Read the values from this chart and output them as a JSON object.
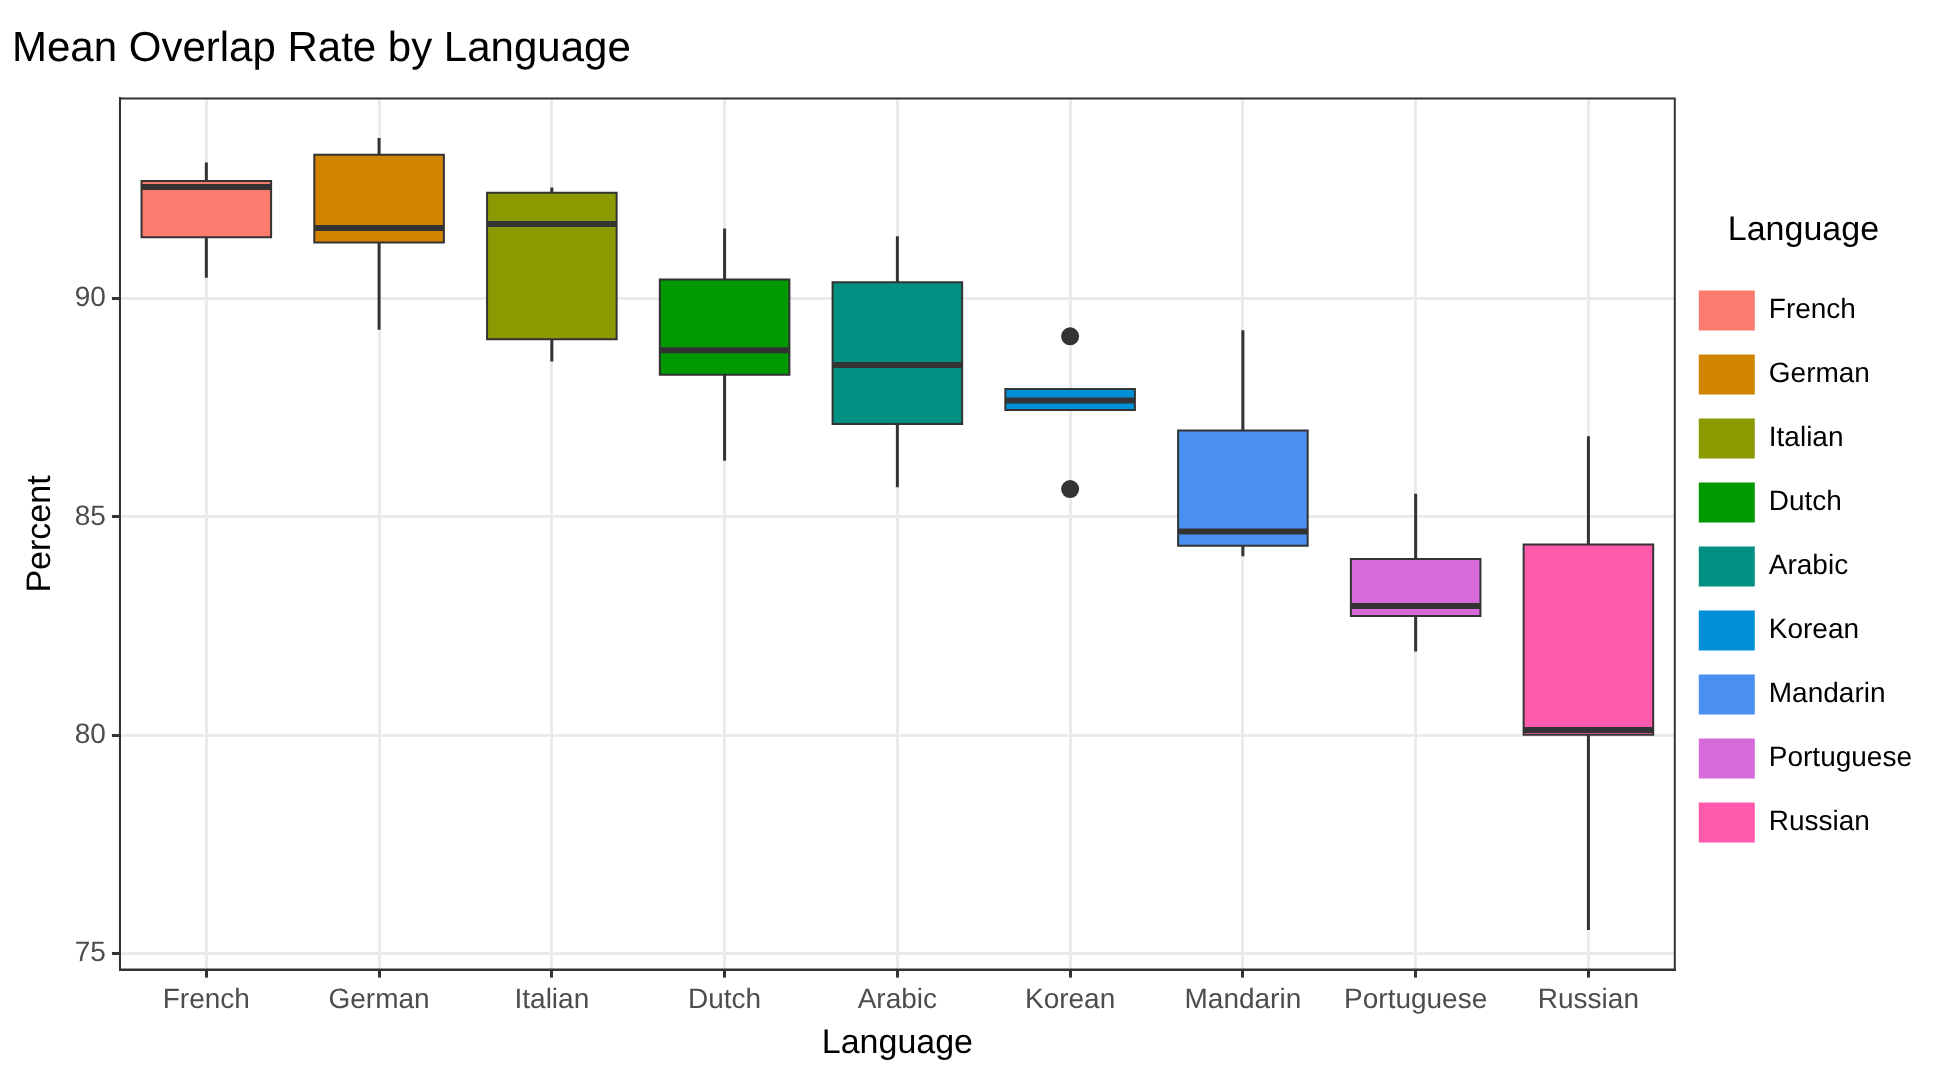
{
  "chart_data": {
    "type": "box",
    "title": "Mean Overlap Rate by Language",
    "xlabel": "Language",
    "ylabel": "Percent",
    "legend_title": "Language",
    "categories": [
      "French",
      "German",
      "Italian",
      "Dutch",
      "Arabic",
      "Korean",
      "Mandarin",
      "Portuguese",
      "Russian"
    ],
    "series": [
      {
        "name": "French",
        "color": "#fc7b6e",
        "boxes": [
          {
            "low": 90.48,
            "q1": 91.41,
            "median": 92.56,
            "q3": 92.7,
            "high": 93.12
          },
          null,
          null,
          null,
          null,
          null,
          null,
          null,
          null
        ]
      },
      {
        "name": "German",
        "color": "#d08400",
        "boxes": [
          null,
          {
            "low": 89.29,
            "q1": 91.29,
            "median": 91.62,
            "q3": 93.3,
            "high": 93.68
          },
          null,
          null,
          null,
          null,
          null,
          null,
          null
        ]
      },
      {
        "name": "Italian",
        "color": "#8a9a00",
        "boxes": [
          null,
          null,
          {
            "low": 88.56,
            "q1": 89.07,
            "median": 91.71,
            "q3": 92.43,
            "high": 92.55
          },
          null,
          null,
          null,
          null,
          null,
          null
        ]
      },
      {
        "name": "Dutch",
        "color": "#009a00",
        "boxes": [
          null,
          null,
          null,
          {
            "low": 86.29,
            "q1": 88.26,
            "median": 88.82,
            "q3": 90.44,
            "high": 91.61
          },
          null,
          null,
          null,
          null,
          null
        ]
      },
      {
        "name": "Arabic",
        "color": "#008f80",
        "boxes": [
          null,
          null,
          null,
          null,
          {
            "low": 85.68,
            "q1": 87.13,
            "median": 88.48,
            "q3": 90.38,
            "high": 91.43
          },
          null,
          null,
          null,
          null
        ]
      },
      {
        "name": "Korean",
        "color": "#0090d8",
        "boxes": [
          null,
          null,
          null,
          null,
          null,
          {
            "low": 87.45,
            "q1": 87.45,
            "median": 87.67,
            "q3": 87.93,
            "high": 87.93,
            "outliers": [
              89.14,
              85.64
            ]
          },
          null,
          null,
          null
        ]
      },
      {
        "name": "Mandarin",
        "color": "#4a90f0",
        "boxes": [
          null,
          null,
          null,
          null,
          null,
          null,
          {
            "low": 84.1,
            "q1": 84.34,
            "median": 84.67,
            "q3": 86.98,
            "high": 89.28
          },
          null,
          null
        ]
      },
      {
        "name": "Portuguese",
        "color": "#d66adb",
        "boxes": [
          null,
          null,
          null,
          null,
          null,
          null,
          null,
          {
            "low": 81.92,
            "q1": 82.73,
            "median": 82.96,
            "q3": 84.04,
            "high": 85.53
          },
          null
        ]
      },
      {
        "name": "Russian",
        "color": "#ff5aac",
        "boxes": [
          null,
          null,
          null,
          null,
          null,
          null,
          null,
          null,
          {
            "low": 75.54,
            "q1": 80.01,
            "median": 80.12,
            "q3": 84.37,
            "high": 86.85
          }
        ]
      }
    ],
    "ylim": [
      74.63,
      94.59
    ],
    "yticks": [
      75,
      80,
      85,
      90
    ],
    "grid": true,
    "legend": "right"
  }
}
